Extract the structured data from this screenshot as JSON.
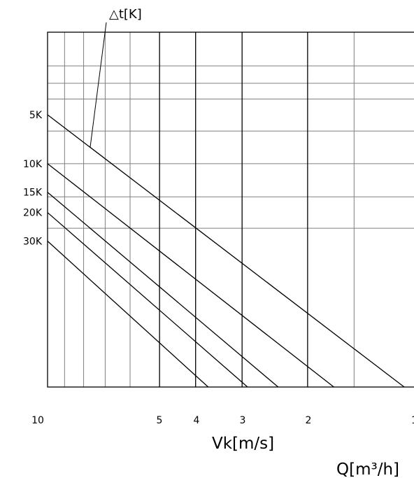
{
  "chart_data": {
    "type": "line",
    "title": "",
    "annotation": "△t[K]",
    "xlabel": "Vk[m/s]",
    "xlabel2": "Q[m³/h]",
    "x_scale": "log",
    "x_reversed": true,
    "x_ticks": [
      "10",
      "5",
      "4",
      "3",
      "2",
      "1"
    ],
    "grid": true,
    "series": [
      {
        "name": "5K",
        "points": [
          [
            10,
            5
          ],
          [
            1.1,
            1
          ]
        ]
      },
      {
        "name": "10K",
        "points": [
          [
            10,
            10
          ],
          [
            1.7,
            1
          ]
        ]
      },
      {
        "name": "15K",
        "points": [
          [
            10,
            15
          ],
          [
            2.4,
            1
          ]
        ]
      },
      {
        "name": "20K",
        "points": [
          [
            10,
            20
          ],
          [
            2.9,
            1
          ]
        ]
      },
      {
        "name": "30K",
        "points": [
          [
            10,
            30
          ],
          [
            3.7,
            1
          ]
        ]
      }
    ]
  }
}
